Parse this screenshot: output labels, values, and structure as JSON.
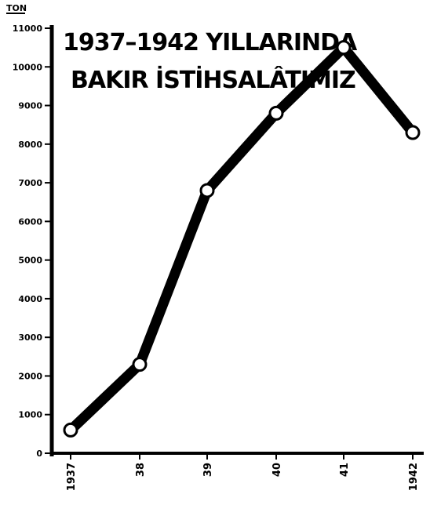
{
  "chart_data": {
    "type": "line",
    "title_lines": [
      "1937–1942 YILLARINDA",
      "BAKIR İSTİHSALÂTIMIZ"
    ],
    "unit_label": "TON",
    "categories": [
      "1937",
      "38",
      "39",
      "40",
      "41",
      "1942"
    ],
    "series": [
      {
        "values": [
          600,
          2300,
          6800,
          8800,
          10500,
          8300
        ]
      }
    ],
    "y_ticks": [
      {
        "value": 0,
        "label": "0"
      },
      {
        "value": 1000,
        "label": "1000"
      },
      {
        "value": 2000,
        "label": "2000"
      },
      {
        "value": 3000,
        "label": "3000"
      },
      {
        "value": 4000,
        "label": "4000"
      },
      {
        "value": 5000,
        "label": "5000"
      },
      {
        "value": 6000,
        "label": "6000"
      },
      {
        "value": 7000,
        "label": "7000"
      },
      {
        "value": 8000,
        "label": "8000"
      },
      {
        "value": 9000,
        "label": "9000"
      },
      {
        "value": 10000,
        "label": "10000"
      },
      {
        "value": 11000,
        "label": "11000"
      }
    ],
    "ylim": [
      0,
      11000
    ],
    "grid": false,
    "colors": {
      "line": "#000000",
      "background": "#ffffff"
    }
  }
}
